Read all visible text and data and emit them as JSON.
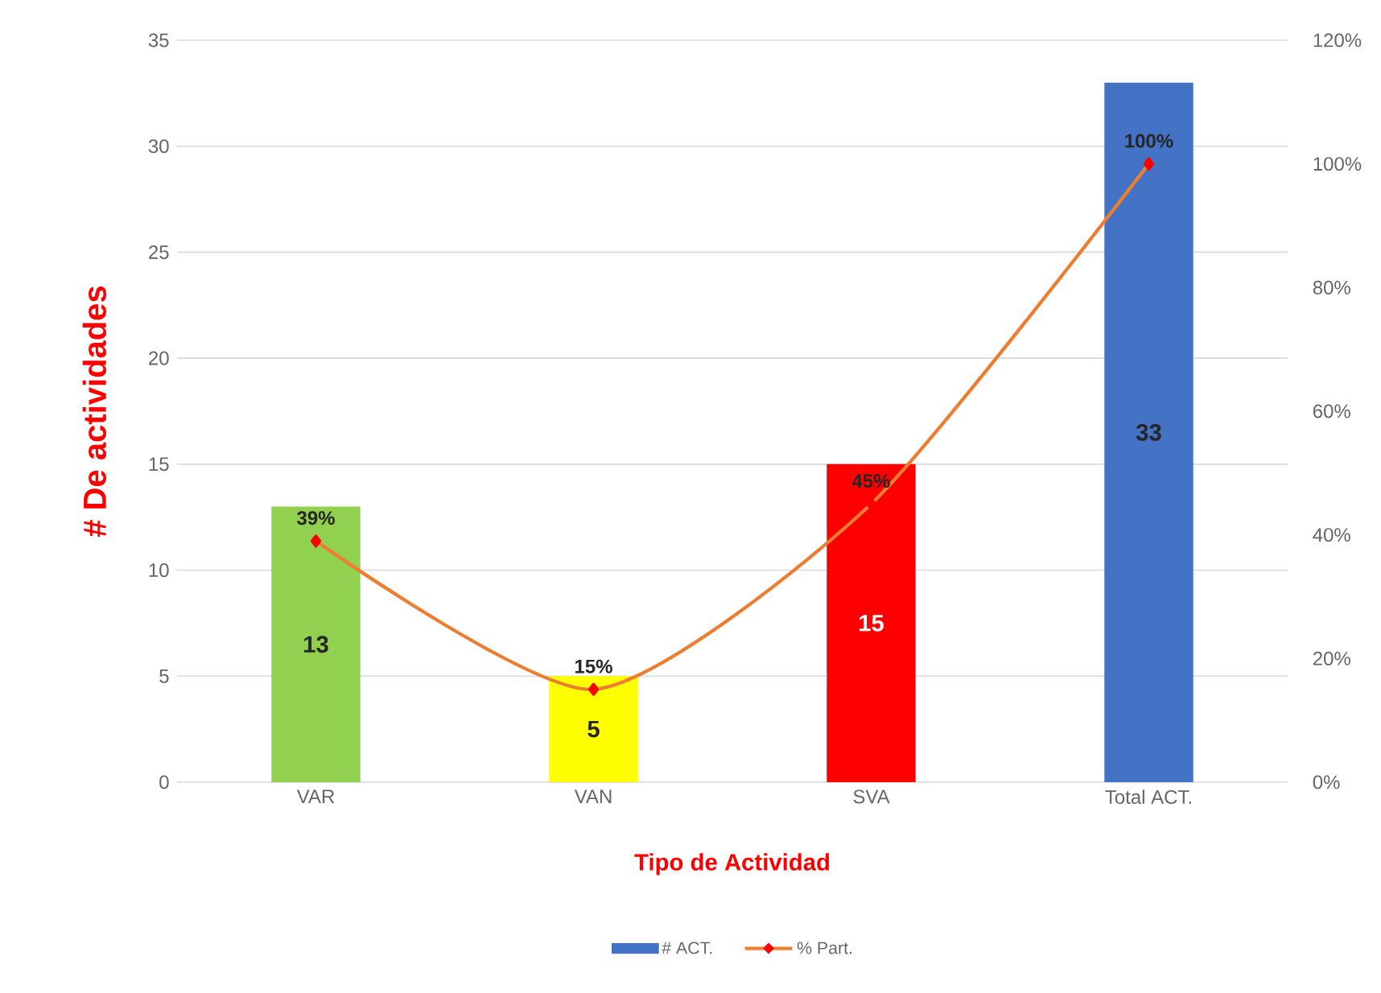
{
  "chart_data": {
    "type": "bar",
    "xlabel": "Tipo de Actividad",
    "ylabel": "# De actividades",
    "categories": [
      "VAR",
      "VAN",
      "SVA",
      "Total ACT."
    ],
    "series": [
      {
        "name": "# ACT.",
        "color": "#4472c4",
        "colors": [
          "#92d050",
          "#ffff00",
          "#ff0000",
          "#4472c4"
        ],
        "values": [
          13,
          5,
          15,
          33
        ],
        "value_labels": [
          "13",
          "5",
          "15",
          "33"
        ]
      },
      {
        "name": "% Part.",
        "type": "line",
        "axis": "y2",
        "color": "#ed7d31",
        "values": [
          39,
          15,
          45,
          100
        ],
        "value_labels": [
          "39%",
          "15%",
          "45%",
          "100%"
        ]
      }
    ],
    "ylim": [
      0,
      35
    ],
    "yticks": [
      0,
      5,
      10,
      15,
      20,
      25,
      30,
      35
    ],
    "y2lim": [
      0,
      120
    ],
    "y2ticks": [
      {
        "value": 0,
        "label": "0%"
      },
      {
        "value": 20,
        "label": "20%"
      },
      {
        "value": 40,
        "label": "40%"
      },
      {
        "value": 60,
        "label": "60%"
      },
      {
        "value": 80,
        "label": "80%"
      },
      {
        "value": 100,
        "label": "100%"
      },
      {
        "value": 120,
        "label": "120%"
      }
    ],
    "grid": "y",
    "legend": "bottom",
    "marker": "diamond"
  }
}
